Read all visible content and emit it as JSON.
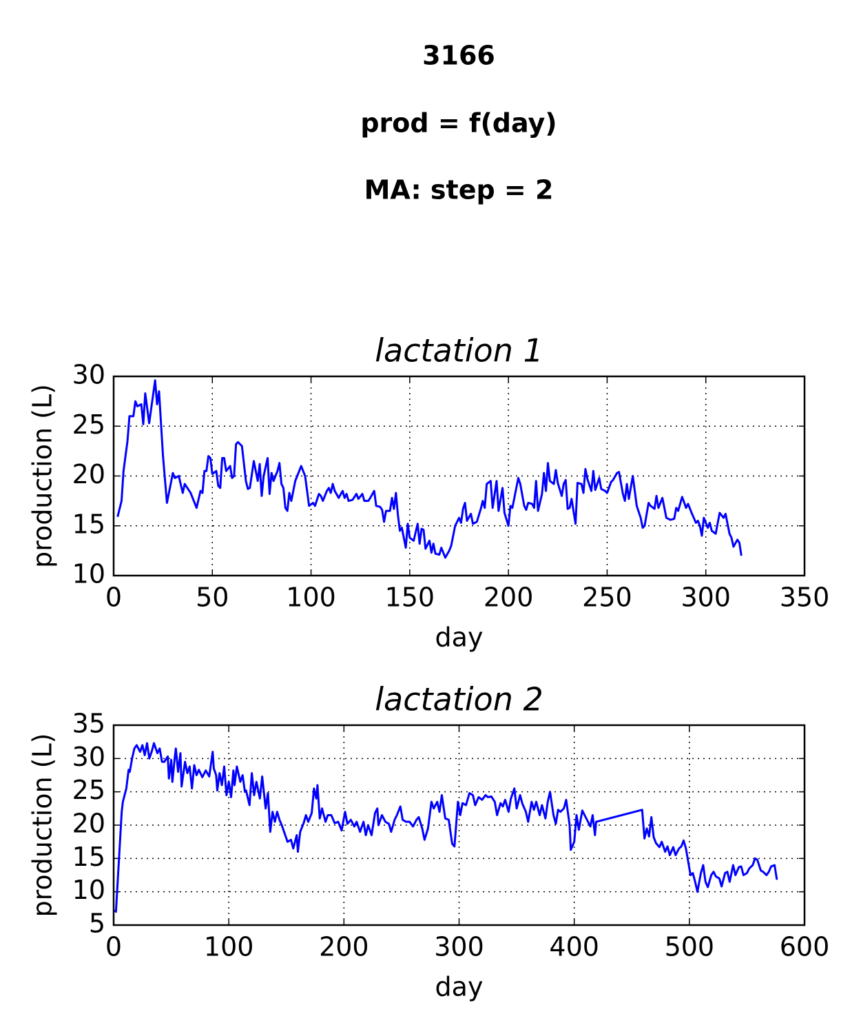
{
  "title_lines": [
    "3166",
    "prod = f(day)",
    "MA: step = 2"
  ],
  "chart_data": [
    {
      "type": "line",
      "title": "lactation 1",
      "xlabel": "day",
      "ylabel": "production (L)",
      "color": "#0000ff",
      "grid": true,
      "xlim": [
        0,
        350
      ],
      "xticks": [
        0,
        50,
        100,
        150,
        200,
        250,
        300,
        350
      ],
      "ylim": [
        10,
        30
      ],
      "yticks": [
        10,
        15,
        20,
        25,
        30
      ],
      "x": [
        2,
        4,
        5,
        7,
        8,
        10,
        11,
        12,
        14,
        15,
        16,
        18,
        21,
        22,
        23,
        25,
        27,
        30,
        31,
        33,
        35,
        36,
        39,
        42,
        44,
        45,
        46,
        47,
        48,
        49,
        50,
        52,
        53,
        54,
        55,
        56,
        57,
        59,
        60,
        61,
        62,
        63,
        65,
        67,
        68,
        69,
        71,
        73,
        74,
        75,
        76,
        78,
        79,
        80,
        81,
        83,
        84,
        85,
        86,
        87,
        88,
        89,
        90,
        92,
        95,
        97,
        99,
        101,
        102,
        104,
        105,
        106,
        108,
        109,
        110,
        111,
        112,
        114,
        116,
        117,
        118,
        119,
        121,
        123,
        124,
        126,
        127,
        129,
        130,
        132,
        133,
        135,
        136,
        137,
        138,
        140,
        141,
        142,
        143,
        144,
        145,
        146,
        148,
        149,
        150,
        152,
        154,
        155,
        156,
        157,
        158,
        160,
        161,
        162,
        163,
        165,
        166,
        168,
        170,
        171,
        173,
        175,
        176,
        177,
        178,
        179,
        181,
        182,
        184,
        186,
        187,
        188,
        189,
        191,
        192,
        194,
        195,
        197,
        198,
        200,
        201,
        202,
        205,
        206,
        208,
        209,
        210,
        212,
        213,
        214,
        215,
        217,
        218,
        219,
        220,
        221,
        223,
        224,
        225,
        227,
        228,
        229,
        230,
        231,
        232,
        234,
        235,
        237,
        238,
        239,
        240,
        242,
        243,
        244,
        246,
        247,
        249,
        250,
        252,
        253,
        255,
        256,
        258,
        259,
        260,
        261,
        263,
        265,
        267,
        268,
        269,
        271,
        272,
        274,
        275,
        276,
        278,
        280,
        282,
        284,
        285,
        286,
        288,
        290,
        291,
        293,
        295,
        296,
        297,
        298,
        299,
        301,
        302,
        303,
        305,
        307,
        309,
        310,
        312,
        313,
        314,
        316,
        317,
        318
      ],
      "values": [
        15.9,
        17.5,
        20.5,
        23.5,
        26,
        26,
        27.5,
        27,
        27.2,
        25.2,
        28.3,
        25.3,
        29.6,
        27.2,
        28.5,
        22,
        17.3,
        20.3,
        19.8,
        20,
        18.3,
        19.2,
        18.3,
        16.8,
        18.5,
        18.3,
        20.5,
        20.5,
        22,
        21.8,
        20.2,
        20.5,
        19,
        18.8,
        21.8,
        21.8,
        20.5,
        21,
        19.8,
        20,
        23.2,
        23.4,
        23,
        19.5,
        18.7,
        18.8,
        21.5,
        19.5,
        21.2,
        18,
        20,
        21.8,
        18.2,
        20.3,
        19.5,
        20.5,
        21.3,
        19.2,
        18.8,
        16.8,
        16.5,
        18.3,
        17.5,
        19.5,
        21,
        20,
        17,
        17.3,
        17,
        18.2,
        18,
        17.5,
        18.5,
        18.8,
        18.3,
        19.2,
        18.5,
        17.8,
        18.5,
        17.8,
        18.2,
        17.5,
        17.6,
        18.2,
        17.7,
        18.2,
        17.5,
        17.5,
        17.8,
        18.5,
        17,
        16.9,
        16.6,
        15.4,
        16.5,
        16.5,
        17.8,
        16.7,
        18.3,
        16.1,
        14.5,
        14.8,
        12.8,
        15.2,
        13.8,
        13.5,
        15.2,
        13.2,
        14.7,
        14.6,
        12.7,
        13.5,
        12.3,
        13.2,
        12.2,
        12.1,
        12.8,
        11.8,
        12.5,
        13,
        15,
        15.8,
        15.3,
        16.7,
        17.3,
        15.5,
        16.2,
        15.2,
        15.4,
        16.7,
        17.5,
        16.8,
        19.2,
        19.5,
        16.8,
        19.5,
        16.5,
        18.8,
        16.3,
        15,
        17,
        16.8,
        19.8,
        19.2,
        17,
        16.6,
        17.3,
        17.2,
        16.8,
        19.5,
        16.5,
        18.2,
        20.3,
        18.5,
        21.3,
        19.5,
        19.2,
        20.6,
        19.3,
        18,
        19.2,
        19.6,
        16.7,
        16.8,
        17.7,
        15.2,
        19.3,
        19.2,
        18.3,
        20.7,
        19.7,
        18.5,
        20.5,
        18.6,
        19.8,
        18.7,
        18.5,
        18.3,
        19.4,
        19.6,
        20.3,
        20.4,
        18.2,
        17.5,
        19.2,
        17.7,
        20,
        17,
        15.8,
        14.8,
        15,
        17.3,
        17,
        16.7,
        18,
        16.8,
        17.8,
        15.8,
        15.6,
        15.7,
        16.8,
        16.5,
        17.9,
        16.8,
        17.2,
        16.2,
        15.3,
        15.5,
        15,
        14,
        15.8,
        14.8,
        15.3,
        14.5,
        14.2,
        16.3,
        15.8,
        16.2,
        14.2,
        13.8,
        12.9,
        13.6,
        13.3,
        12
      ]
    },
    {
      "type": "line",
      "title": "lactation 2",
      "xlabel": "day",
      "ylabel": "production (L)",
      "color": "#0000ff",
      "grid": true,
      "xlim": [
        0,
        600
      ],
      "xticks": [
        0,
        100,
        200,
        300,
        400,
        500,
        600
      ],
      "ylim": [
        5,
        35
      ],
      "yticks": [
        5,
        10,
        15,
        20,
        25,
        30,
        35
      ],
      "x": [
        1,
        2,
        7,
        8,
        11,
        13,
        14,
        16,
        18,
        20,
        23,
        25,
        27,
        29,
        31,
        33,
        35,
        38,
        40,
        42,
        44,
        47,
        48,
        50,
        51,
        53,
        54,
        56,
        58,
        59,
        62,
        64,
        66,
        68,
        70,
        72,
        74,
        77,
        80,
        83,
        86,
        87,
        89,
        90,
        92,
        94,
        96,
        98,
        100,
        102,
        104,
        105,
        107,
        110,
        112,
        114,
        115,
        118,
        120,
        122,
        124,
        127,
        129,
        132,
        134,
        136,
        138,
        140,
        142,
        144,
        146,
        149,
        151,
        154,
        156,
        159,
        160,
        162,
        165,
        167,
        169,
        172,
        174,
        176,
        177,
        179,
        181,
        184,
        186,
        189,
        192,
        195,
        198,
        201,
        203,
        206,
        209,
        211,
        214,
        217,
        219,
        221,
        224,
        227,
        229,
        230,
        233,
        236,
        239,
        241,
        244,
        246,
        249,
        251,
        254,
        257,
        260,
        263,
        265,
        268,
        270,
        273,
        276,
        278,
        281,
        283,
        285,
        288,
        291,
        294,
        296,
        299,
        301,
        303,
        306,
        309,
        312,
        314,
        317,
        320,
        323,
        325,
        328,
        331,
        333,
        336,
        338,
        340,
        343,
        345,
        348,
        350,
        353,
        355,
        358,
        360,
        363,
        365,
        367,
        370,
        372,
        375,
        377,
        379,
        382,
        384,
        386,
        388,
        391,
        393,
        396,
        397,
        400,
        402,
        404,
        407,
        409,
        412,
        414,
        416,
        418,
        419,
        459,
        461,
        463,
        465,
        467,
        469,
        471,
        474,
        476,
        479,
        481,
        483,
        486,
        488,
        491,
        493,
        495,
        497,
        499,
        501,
        503,
        505,
        507,
        510,
        512,
        514,
        516,
        519,
        521,
        523,
        526,
        528,
        531,
        533,
        535,
        538,
        540,
        543,
        545,
        547,
        550,
        552,
        555,
        557,
        559,
        562,
        564,
        567,
        569,
        571,
        574,
        576
      ],
      "values": [
        7.3,
        7,
        22,
        23.5,
        25.5,
        28.3,
        28,
        30,
        31.5,
        32,
        31,
        32,
        30.5,
        32.3,
        30,
        31,
        32.3,
        30.8,
        31.5,
        29.5,
        29.5,
        30.3,
        27,
        29.8,
        26.5,
        30,
        31.5,
        28,
        30.8,
        25.8,
        29.5,
        27.8,
        28.8,
        25.5,
        29,
        27.5,
        28.3,
        27.2,
        28.2,
        27.3,
        31,
        28.5,
        27.5,
        25.2,
        27.8,
        26,
        28.8,
        24.5,
        26.5,
        24.2,
        28.2,
        26,
        28.8,
        26.5,
        27.5,
        25,
        25.2,
        23,
        27.8,
        24.5,
        26.5,
        24,
        27.3,
        22.5,
        24.8,
        19,
        22,
        20.5,
        22,
        20.8,
        20,
        18.5,
        17.5,
        17.8,
        16.5,
        18.5,
        16,
        19,
        20.3,
        21.5,
        20.5,
        21.8,
        25.5,
        24,
        26,
        21,
        22.5,
        20.5,
        21.5,
        21.5,
        20.3,
        20.5,
        19.2,
        22,
        20.2,
        20.8,
        19.8,
        20.5,
        19,
        20.5,
        18.5,
        20,
        18.5,
        21.8,
        22.5,
        20,
        21.5,
        20.5,
        20.2,
        19,
        20.8,
        21.5,
        22.8,
        20.8,
        20.5,
        20.5,
        19.8,
        20.8,
        21.2,
        19.5,
        17.8,
        19.5,
        23.5,
        22.5,
        23.5,
        22,
        24.5,
        21,
        20.8,
        17.2,
        16.8,
        23.5,
        21.5,
        23.3,
        23,
        24.8,
        24.5,
        23,
        24.2,
        23.8,
        24.5,
        24.2,
        24.3,
        23.5,
        21.5,
        23.3,
        22.8,
        23.8,
        22,
        24,
        25.5,
        22.5,
        24.5,
        23.2,
        22,
        20.5,
        23.5,
        22.3,
        23.5,
        21.5,
        23,
        21,
        23.5,
        25,
        21.5,
        20.2,
        22.3,
        22,
        22.5,
        23.8,
        20,
        16.3,
        17.5,
        21.5,
        19.3,
        22.2,
        21.5,
        20.5,
        19.8,
        21.5,
        18.5,
        20.5,
        22.3,
        18,
        19.5,
        18.3,
        21.2,
        18.2,
        17.3,
        16.7,
        17.5,
        16,
        16.8,
        15.5,
        16.7,
        15.5,
        16.5,
        16.8,
        17.7,
        16.5,
        14.5,
        12.5,
        12.8,
        11.5,
        10,
        12.8,
        14,
        11.5,
        10.7,
        12.5,
        13,
        12.3,
        12,
        10.8,
        12.8,
        13,
        11.5,
        14,
        12.5,
        13.7,
        13.8,
        12.5,
        12.8,
        13.5,
        14,
        15,
        14.8,
        13.2,
        13,
        12.5,
        13,
        13.8,
        14,
        11.8
      ]
    }
  ]
}
